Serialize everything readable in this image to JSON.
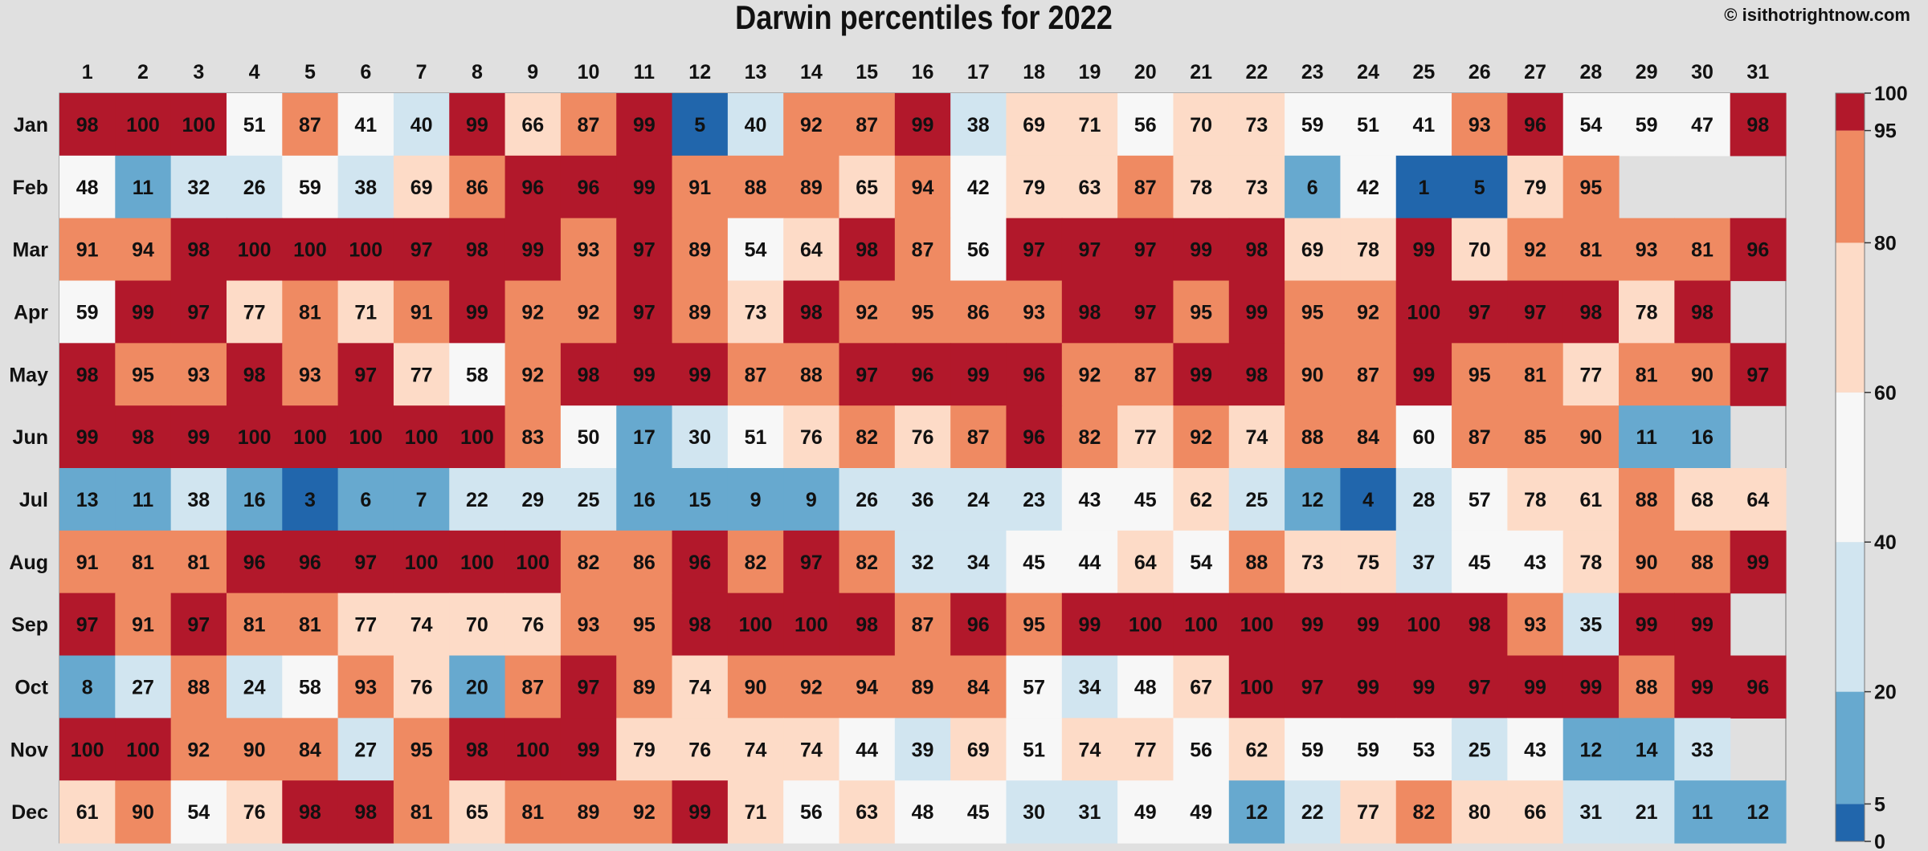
{
  "title": "Darwin percentiles for 2022",
  "credit": "© isithotrightnow.com",
  "colors": {
    "background": "#e0e0e0",
    "missing": "#e0e0e0",
    "bins": [
      {
        "min": 0,
        "max": 5,
        "color": "#2166ac"
      },
      {
        "min": 5,
        "max": 20,
        "color": "#67a9cf"
      },
      {
        "min": 20,
        "max": 40,
        "color": "#d1e5f0"
      },
      {
        "min": 40,
        "max": 60,
        "color": "#f7f7f7"
      },
      {
        "min": 60,
        "max": 80,
        "color": "#fddbc7"
      },
      {
        "min": 80,
        "max": 95,
        "color": "#ef8a62"
      },
      {
        "min": 95,
        "max": 100,
        "color": "#b2182b"
      }
    ]
  },
  "chart_data": {
    "type": "heatmap",
    "title": "Darwin percentiles for 2022",
    "x": [
      "1",
      "2",
      "3",
      "4",
      "5",
      "6",
      "7",
      "8",
      "9",
      "10",
      "11",
      "12",
      "13",
      "14",
      "15",
      "16",
      "17",
      "18",
      "19",
      "20",
      "21",
      "22",
      "23",
      "24",
      "25",
      "26",
      "27",
      "28",
      "29",
      "30",
      "31"
    ],
    "y": [
      "Jan",
      "Feb",
      "Mar",
      "Apr",
      "May",
      "Jun",
      "Jul",
      "Aug",
      "Sep",
      "Oct",
      "Nov",
      "Dec"
    ],
    "values": [
      [
        98,
        100,
        100,
        51,
        87,
        41,
        40,
        99,
        66,
        87,
        99,
        5,
        40,
        92,
        87,
        99,
        38,
        69,
        71,
        56,
        70,
        73,
        59,
        51,
        41,
        93,
        96,
        54,
        59,
        47,
        98
      ],
      [
        48,
        11,
        32,
        26,
        59,
        38,
        69,
        86,
        96,
        96,
        99,
        91,
        88,
        89,
        65,
        94,
        42,
        79,
        63,
        87,
        78,
        73,
        6,
        42,
        1,
        5,
        79,
        95,
        null,
        null,
        null
      ],
      [
        91,
        94,
        98,
        100,
        100,
        100,
        97,
        98,
        99,
        93,
        97,
        89,
        54,
        64,
        98,
        87,
        56,
        97,
        97,
        97,
        99,
        98,
        69,
        78,
        99,
        70,
        92,
        81,
        93,
        81,
        96
      ],
      [
        59,
        99,
        97,
        77,
        81,
        71,
        91,
        99,
        92,
        92,
        97,
        89,
        73,
        98,
        92,
        95,
        86,
        93,
        98,
        97,
        95,
        99,
        95,
        92,
        100,
        97,
        97,
        98,
        78,
        98,
        null
      ],
      [
        98,
        95,
        93,
        98,
        93,
        97,
        77,
        58,
        92,
        98,
        99,
        99,
        87,
        88,
        97,
        96,
        99,
        96,
        92,
        87,
        99,
        98,
        90,
        87,
        99,
        95,
        81,
        77,
        81,
        90,
        97
      ],
      [
        99,
        98,
        99,
        100,
        100,
        100,
        100,
        100,
        83,
        50,
        17,
        30,
        51,
        76,
        82,
        76,
        87,
        96,
        82,
        77,
        92,
        74,
        88,
        84,
        60,
        87,
        85,
        90,
        11,
        16,
        null
      ],
      [
        13,
        11,
        38,
        16,
        3,
        6,
        7,
        22,
        29,
        25,
        16,
        15,
        9,
        9,
        26,
        36,
        24,
        23,
        43,
        45,
        62,
        25,
        12,
        4,
        28,
        57,
        78,
        61,
        88,
        68,
        64
      ],
      [
        91,
        81,
        81,
        96,
        96,
        97,
        100,
        100,
        100,
        82,
        86,
        96,
        82,
        97,
        82,
        32,
        34,
        45,
        44,
        64,
        54,
        88,
        73,
        75,
        37,
        45,
        43,
        78,
        90,
        88,
        99
      ],
      [
        97,
        91,
        97,
        81,
        81,
        77,
        74,
        70,
        76,
        93,
        95,
        98,
        100,
        100,
        98,
        87,
        96,
        95,
        99,
        100,
        100,
        100,
        99,
        99,
        100,
        98,
        93,
        35,
        99,
        99,
        null
      ],
      [
        8,
        27,
        88,
        24,
        58,
        93,
        76,
        20,
        87,
        97,
        89,
        74,
        90,
        92,
        94,
        89,
        84,
        57,
        34,
        48,
        67,
        100,
        97,
        99,
        99,
        97,
        99,
        99,
        88,
        99,
        96
      ],
      [
        100,
        100,
        92,
        90,
        84,
        27,
        95,
        98,
        100,
        99,
        79,
        76,
        74,
        74,
        44,
        39,
        69,
        51,
        74,
        77,
        56,
        62,
        59,
        59,
        53,
        25,
        43,
        12,
        14,
        33,
        null
      ],
      [
        61,
        90,
        54,
        76,
        98,
        98,
        81,
        65,
        81,
        89,
        92,
        99,
        71,
        56,
        63,
        48,
        45,
        30,
        31,
        49,
        49,
        12,
        22,
        77,
        82,
        80,
        66,
        31,
        21,
        11,
        12
      ]
    ],
    "colorbar": {
      "ticks": [
        0,
        5,
        20,
        40,
        60,
        80,
        95,
        100
      ],
      "tick_labels": [
        "0",
        "5",
        "20",
        "40",
        "60",
        "80",
        "95",
        "100"
      ]
    }
  }
}
